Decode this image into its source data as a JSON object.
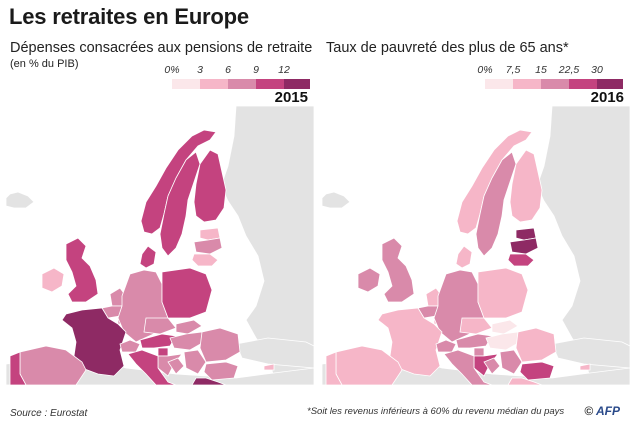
{
  "title": "Les retraites en Europe",
  "colors": {
    "ocean": "#ffffff",
    "nodata": "#e3e3e3",
    "border": "#ffffff",
    "c0": "#fbe7ea",
    "c1": "#f6b6c8",
    "c2": "#d98aaa",
    "c3": "#c4437f",
    "c4": "#8e2a64"
  },
  "left_panel": {
    "title": "Dépenses consacrées aux pensions de retraite",
    "subtitle": "(en % du PIB)",
    "year": "2015",
    "legend": [
      "0%",
      "3",
      "6",
      "9",
      "12"
    ]
  },
  "right_panel": {
    "title": "Taux de pauvreté des plus de 65 ans*",
    "year": "2016",
    "legend": [
      "0%",
      "7,5",
      "15",
      "22,5",
      "30"
    ]
  },
  "footer": {
    "source": "Source : Eurostat",
    "note": "*Soit les revenus inférieurs à 60% du revenu médian du pays",
    "credit_symbol": "©",
    "credit": "AFP"
  },
  "chart_data": [
    {
      "type": "map",
      "title": "Dépenses consacrées aux pensions de retraite",
      "unit": "(en % du PIB)",
      "year": "2015",
      "scale": [
        0,
        3,
        6,
        9,
        12
      ],
      "classes_by_country": {
        "Portugal": 3,
        "Espagne": 2,
        "France": 4,
        "Irlande": 1,
        "Royaume-Uni": 3,
        "Belgique": 2,
        "Pays-Bas": 2,
        "Luxembourg": 2,
        "Allemagne": 2,
        "Danemark": 3,
        "Norvège": 3,
        "Suède": 3,
        "Finlande": 3,
        "Estonie": 1,
        "Lettonie": 2,
        "Lituanie": 1,
        "Pologne": 3,
        "Tchéquie": 2,
        "Slovaquie": 2,
        "Autriche": 3,
        "Suisse": 2,
        "Italie": 3,
        "Slovénie": 3,
        "Croatie": 2,
        "Hongrie": 2,
        "Roumanie": 2,
        "Bulgarie": 2,
        "Grèce": 4,
        "Serbie": 2,
        "Bosnie": 2,
        "Chypre": 1
      }
    },
    {
      "type": "map",
      "title": "Taux de pauvreté des plus de 65 ans*",
      "year": "2016",
      "scale": [
        0,
        7.5,
        15,
        22.5,
        30
      ],
      "classes_by_country": {
        "Portugal": 1,
        "Espagne": 1,
        "France": 1,
        "Irlande": 2,
        "Royaume-Uni": 2,
        "Belgique": 2,
        "Pays-Bas": 1,
        "Luxembourg": 1,
        "Allemagne": 2,
        "Danemark": 1,
        "Norvège": 1,
        "Suède": 2,
        "Finlande": 1,
        "Estonie": 4,
        "Lettonie": 4,
        "Lituanie": 3,
        "Pologne": 1,
        "Tchéquie": 1,
        "Slovaquie": 0,
        "Autriche": 2,
        "Suisse": 2,
        "Italie": 2,
        "Slovénie": 2,
        "Croatie": 3,
        "Hongrie": 0,
        "Roumanie": 1,
        "Bulgarie": 3,
        "Grèce": 1,
        "Serbie": 2,
        "Bosnie": 2,
        "Chypre": 1
      }
    }
  ]
}
